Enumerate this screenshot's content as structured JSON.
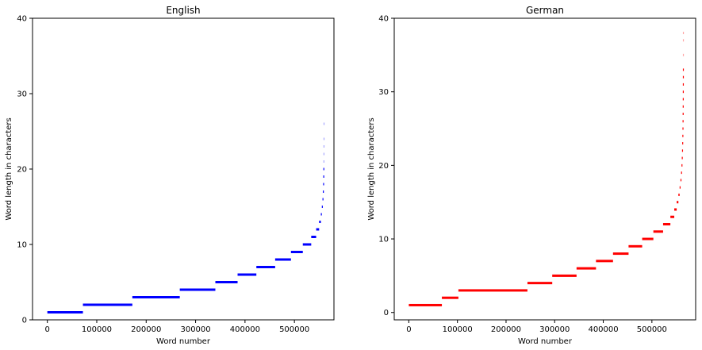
{
  "chart_data": [
    {
      "type": "scatter",
      "title": "English",
      "xlabel": "Word number",
      "ylabel": "Word length in characters",
      "xlim": [
        -30000,
        580000
      ],
      "ylim": [
        0,
        40
      ],
      "xticks": [
        0,
        100000,
        200000,
        300000,
        400000,
        500000
      ],
      "xtick_labels": [
        "0",
        "100000",
        "200000",
        "300000",
        "400000",
        "500000"
      ],
      "yticks": [
        0,
        10,
        20,
        30,
        40
      ],
      "ytick_labels": [
        "0",
        "10",
        "20",
        "30",
        "40"
      ],
      "color": "#0000ff",
      "segments": [
        {
          "length": 1,
          "x_start": 0,
          "x_end": 72000
        },
        {
          "length": 2,
          "x_start": 72000,
          "x_end": 172000
        },
        {
          "length": 3,
          "x_start": 172000,
          "x_end": 268000
        },
        {
          "length": 4,
          "x_start": 268000,
          "x_end": 340000
        },
        {
          "length": 5,
          "x_start": 340000,
          "x_end": 385000
        },
        {
          "length": 6,
          "x_start": 385000,
          "x_end": 423000
        },
        {
          "length": 7,
          "x_start": 423000,
          "x_end": 461000
        },
        {
          "length": 8,
          "x_start": 461000,
          "x_end": 493000
        },
        {
          "length": 9,
          "x_start": 493000,
          "x_end": 517000
        },
        {
          "length": 10,
          "x_start": 517000,
          "x_end": 534000
        },
        {
          "length": 11,
          "x_start": 534000,
          "x_end": 544000
        },
        {
          "length": 12,
          "x_start": 544000,
          "x_end": 550000
        },
        {
          "length": 13,
          "x_start": 550000,
          "x_end": 553500
        },
        {
          "length": 14,
          "x_start": 553500,
          "x_end": 555500
        },
        {
          "length": 15,
          "x_start": 555500,
          "x_end": 556800
        },
        {
          "length": 16,
          "x_start": 556800,
          "x_end": 557600
        },
        {
          "length": 17,
          "x_start": 557600,
          "x_end": 558100
        },
        {
          "length": 18,
          "x_start": 558100,
          "x_end": 558400
        },
        {
          "length": 19,
          "x_start": 558400,
          "x_end": 558600
        },
        {
          "length": 20,
          "x_start": 558600,
          "x_end": 558750
        },
        {
          "length": 21,
          "x_start": 558750,
          "x_end": 558850
        },
        {
          "length": 22,
          "x_start": 558850,
          "x_end": 558900
        },
        {
          "length": 23,
          "x_start": 558900,
          "x_end": 558950
        },
        {
          "length": 24,
          "x_start": 558950,
          "x_end": 558980
        },
        {
          "length": 26,
          "x_start": 558980,
          "x_end": 559000
        }
      ]
    },
    {
      "type": "scatter",
      "title": "German",
      "xlabel": "Word number",
      "ylabel": "Word length in characters",
      "xlim": [
        -30000,
        590000
      ],
      "ylim": [
        -1,
        40
      ],
      "xticks": [
        0,
        100000,
        200000,
        300000,
        400000,
        500000
      ],
      "xtick_labels": [
        "0",
        "100000",
        "200000",
        "300000",
        "400000",
        "500000"
      ],
      "yticks": [
        0,
        10,
        20,
        30,
        40
      ],
      "ytick_labels": [
        "0",
        "10",
        "20",
        "30",
        "40"
      ],
      "color": "#ff0000",
      "segments": [
        {
          "length": 1,
          "x_start": 0,
          "x_end": 68000
        },
        {
          "length": 2,
          "x_start": 68000,
          "x_end": 102000
        },
        {
          "length": 3,
          "x_start": 102000,
          "x_end": 244000
        },
        {
          "length": 4,
          "x_start": 244000,
          "x_end": 295000
        },
        {
          "length": 5,
          "x_start": 295000,
          "x_end": 345000
        },
        {
          "length": 6,
          "x_start": 345000,
          "x_end": 385000
        },
        {
          "length": 7,
          "x_start": 385000,
          "x_end": 420000
        },
        {
          "length": 8,
          "x_start": 420000,
          "x_end": 452000
        },
        {
          "length": 9,
          "x_start": 452000,
          "x_end": 480000
        },
        {
          "length": 10,
          "x_start": 480000,
          "x_end": 503000
        },
        {
          "length": 11,
          "x_start": 503000,
          "x_end": 523000
        },
        {
          "length": 12,
          "x_start": 523000,
          "x_end": 538000
        },
        {
          "length": 13,
          "x_start": 538000,
          "x_end": 546000
        },
        {
          "length": 14,
          "x_start": 546000,
          "x_end": 551000
        },
        {
          "length": 15,
          "x_start": 551000,
          "x_end": 554500
        },
        {
          "length": 16,
          "x_start": 554500,
          "x_end": 557000
        },
        {
          "length": 17,
          "x_start": 557000,
          "x_end": 558800
        },
        {
          "length": 18,
          "x_start": 558800,
          "x_end": 560000
        },
        {
          "length": 19,
          "x_start": 560000,
          "x_end": 560900
        },
        {
          "length": 20,
          "x_start": 560900,
          "x_end": 561500
        },
        {
          "length": 21,
          "x_start": 561500,
          "x_end": 562000
        },
        {
          "length": 22,
          "x_start": 562000,
          "x_end": 562400
        },
        {
          "length": 23,
          "x_start": 562400,
          "x_end": 562700
        },
        {
          "length": 24,
          "x_start": 562700,
          "x_end": 562950
        },
        {
          "length": 25,
          "x_start": 562950,
          "x_end": 563150
        },
        {
          "length": 26,
          "x_start": 563150,
          "x_end": 563300
        },
        {
          "length": 27,
          "x_start": 563300,
          "x_end": 563420
        },
        {
          "length": 28,
          "x_start": 563420,
          "x_end": 563520
        },
        {
          "length": 29,
          "x_start": 563520,
          "x_end": 563600
        },
        {
          "length": 30,
          "x_start": 563600,
          "x_end": 563660
        },
        {
          "length": 31,
          "x_start": 563660,
          "x_end": 563710
        },
        {
          "length": 32,
          "x_start": 563710,
          "x_end": 563750
        },
        {
          "length": 33,
          "x_start": 563750,
          "x_end": 563780
        },
        {
          "length": 35,
          "x_start": 563780,
          "x_end": 563800
        },
        {
          "length": 37,
          "x_start": 563800,
          "x_end": 563815
        },
        {
          "length": 38,
          "x_start": 563815,
          "x_end": 563830
        }
      ]
    }
  ]
}
